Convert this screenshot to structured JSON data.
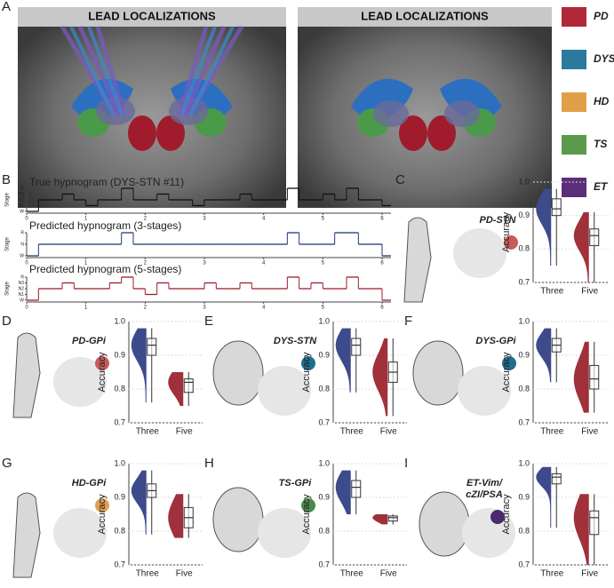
{
  "panel_labels": [
    "A",
    "B",
    "C",
    "D",
    "E",
    "F",
    "G",
    "H",
    "I"
  ],
  "figure_a": {
    "titles": [
      "LEAD LOCALIZATIONS",
      "LEAD LOCALIZATIONS"
    ],
    "legend": [
      {
        "name": "PD",
        "color": "#b0283a"
      },
      {
        "name": "DYS",
        "color": "#2b7a9e"
      },
      {
        "name": "HD",
        "color": "#e0a04a"
      },
      {
        "name": "TS",
        "color": "#5a9a4a"
      },
      {
        "name": "ET",
        "color": "#5a2e78"
      }
    ]
  },
  "chart_data": [
    {
      "type": "hypnogram",
      "title": "True hypnogram (DYS-STN #11)",
      "ylabel": "Stage",
      "color": "#111111",
      "x": [
        0,
        0.2,
        0.4,
        0.6,
        0.8,
        1,
        1.2,
        1.4,
        1.6,
        1.8,
        2,
        2.2,
        2.4,
        2.6,
        2.8,
        3,
        3.2,
        3.4,
        3.6,
        3.8,
        4,
        4.2,
        4.4,
        4.6,
        4.8,
        5,
        5.2,
        5.4,
        5.6,
        5.8,
        6
      ],
      "values": [
        0,
        2,
        2,
        3,
        2,
        1,
        2,
        2,
        4,
        2,
        2,
        3,
        2,
        2,
        1,
        2,
        2,
        2,
        3,
        2,
        2,
        2,
        4,
        2,
        2,
        3,
        2,
        4,
        2,
        2,
        1
      ],
      "xlim": [
        0,
        6.15
      ],
      "xticks": [
        0,
        1,
        2,
        3,
        4,
        5,
        6
      ],
      "ylim": [
        0,
        4
      ],
      "yticks": [
        {
          "value": 0,
          "label": "W"
        },
        {
          "value": 1,
          "label": "N1"
        },
        {
          "value": 2,
          "label": "N2"
        },
        {
          "value": 3,
          "label": "N3"
        },
        {
          "value": 4,
          "label": "R"
        }
      ]
    },
    {
      "type": "hypnogram",
      "title": "Predicted hypnogram (3-stages)",
      "ylabel": "Stage",
      "color": "#1f3a7a",
      "x": [
        0,
        0.2,
        0.4,
        0.6,
        0.8,
        1,
        1.2,
        1.4,
        1.6,
        1.8,
        2,
        2.2,
        2.4,
        2.6,
        2.8,
        3,
        3.2,
        3.4,
        3.6,
        3.8,
        4,
        4.2,
        4.4,
        4.6,
        4.8,
        5,
        5.2,
        5.4,
        5.6,
        5.8,
        6
      ],
      "values": [
        0,
        1,
        1,
        1,
        1,
        1,
        1,
        1,
        2,
        1,
        1,
        1,
        1,
        1,
        1,
        1,
        1,
        1,
        1,
        1,
        1,
        1,
        2,
        1,
        1,
        1,
        2,
        2,
        1,
        1,
        0
      ],
      "xlim": [
        0,
        6.15
      ],
      "xticks": [
        0,
        1,
        2,
        3,
        4,
        5,
        6
      ],
      "ylim": [
        0,
        2
      ],
      "yticks": [
        {
          "value": 0,
          "label": "W"
        },
        {
          "value": 1,
          "label": "N"
        },
        {
          "value": 2,
          "label": "R"
        }
      ]
    },
    {
      "type": "hypnogram",
      "title": "Predicted hypnogram (5-stages)",
      "ylabel": "Stage",
      "color": "#a01c2c",
      "x": [
        0,
        0.2,
        0.4,
        0.6,
        0.8,
        1,
        1.2,
        1.4,
        1.6,
        1.8,
        2,
        2.2,
        2.4,
        2.6,
        2.8,
        3,
        3.2,
        3.4,
        3.6,
        3.8,
        4,
        4.2,
        4.4,
        4.6,
        4.8,
        5,
        5.2,
        5.4,
        5.6,
        5.8,
        6
      ],
      "values": [
        0,
        2,
        2,
        3,
        2,
        2,
        2,
        3,
        4,
        2,
        1,
        3,
        2,
        2,
        2,
        3,
        2,
        2,
        3,
        2,
        2,
        2,
        4,
        2,
        3,
        2,
        2,
        4,
        2,
        2,
        0
      ],
      "xlim": [
        0,
        6.15
      ],
      "xticks": [
        0,
        1,
        2,
        3,
        4,
        5,
        6
      ],
      "ylim": [
        0,
        4
      ],
      "yticks": [
        {
          "value": 0,
          "label": "W"
        },
        {
          "value": 1,
          "label": "N1"
        },
        {
          "value": 2,
          "label": "N2"
        },
        {
          "value": 3,
          "label": "N3"
        },
        {
          "value": 4,
          "label": "R"
        }
      ]
    },
    {
      "type": "box",
      "title_lines": [
        "PD-STN"
      ],
      "marker_color": "#c85a5a",
      "ylabel": "Accuracy",
      "grid": true,
      "ylim": [
        0.7,
        1
      ],
      "yticks": [
        0.7,
        0.8,
        0.9,
        {
          "value": 1,
          "label": "1.0"
        }
      ],
      "series": [
        {
          "name": "Three",
          "color": "#3d4a8c",
          "min": 0.75,
          "q1": 0.9,
          "median": 0.92,
          "q3": 0.95,
          "max": 0.98
        },
        {
          "name": "Five",
          "color": "#a0303a",
          "min": 0.7,
          "q1": 0.81,
          "median": 0.84,
          "q3": 0.86,
          "max": 0.91
        }
      ]
    },
    {
      "type": "box",
      "title_lines": [
        "PD-GPi"
      ],
      "marker_color": "#c85a5a",
      "ylabel": "Accuracy",
      "grid": true,
      "ylim": [
        0.7,
        1
      ],
      "yticks": [
        0.7,
        0.8,
        0.9,
        {
          "value": 1,
          "label": "1.0"
        }
      ],
      "series": [
        {
          "name": "Three",
          "color": "#3d4a8c",
          "min": 0.76,
          "q1": 0.9,
          "median": 0.93,
          "q3": 0.95,
          "max": 0.98
        },
        {
          "name": "Five",
          "color": "#a0303a",
          "min": 0.75,
          "q1": 0.79,
          "median": 0.82,
          "q3": 0.83,
          "max": 0.85
        }
      ]
    },
    {
      "type": "box",
      "title_lines": [
        "DYS-STN"
      ],
      "marker_color": "#1f6e8c",
      "ylabel": "Accuracy",
      "grid": true,
      "ylim": [
        0.7,
        1
      ],
      "yticks": [
        0.7,
        0.8,
        0.9,
        {
          "value": 1,
          "label": "1.0"
        }
      ],
      "series": [
        {
          "name": "Three",
          "color": "#3d4a8c",
          "min": 0.79,
          "q1": 0.9,
          "median": 0.93,
          "q3": 0.95,
          "max": 0.98
        },
        {
          "name": "Five",
          "color": "#a0303a",
          "min": 0.72,
          "q1": 0.82,
          "median": 0.85,
          "q3": 0.88,
          "max": 0.95
        }
      ]
    },
    {
      "type": "box",
      "title_lines": [
        "DYS-GPi"
      ],
      "marker_color": "#1f6e8c",
      "ylabel": "Accuracy",
      "grid": true,
      "ylim": [
        0.7,
        1
      ],
      "yticks": [
        0.7,
        0.8,
        0.9,
        {
          "value": 1,
          "label": "1.0"
        }
      ],
      "series": [
        {
          "name": "Three",
          "color": "#3d4a8c",
          "min": 0.82,
          "q1": 0.91,
          "median": 0.93,
          "q3": 0.95,
          "max": 0.98
        },
        {
          "name": "Five",
          "color": "#a0303a",
          "min": 0.73,
          "q1": 0.8,
          "median": 0.83,
          "q3": 0.87,
          "max": 0.94
        }
      ]
    },
    {
      "type": "box",
      "title_lines": [
        "HD-GPi"
      ],
      "marker_color": "#e0a050",
      "ylabel": "Accuracy",
      "grid": true,
      "ylim": [
        0.7,
        1
      ],
      "yticks": [
        0.7,
        0.8,
        0.9,
        {
          "value": 1,
          "label": "1.0"
        }
      ],
      "series": [
        {
          "name": "Three",
          "color": "#3d4a8c",
          "min": 0.79,
          "q1": 0.9,
          "median": 0.92,
          "q3": 0.94,
          "max": 0.98
        },
        {
          "name": "Five",
          "color": "#a0303a",
          "min": 0.78,
          "q1": 0.81,
          "median": 0.84,
          "q3": 0.87,
          "max": 0.91
        }
      ]
    },
    {
      "type": "box",
      "title_lines": [
        "TS-GPi"
      ],
      "marker_color": "#4a8a4a",
      "ylabel": "Accuracy",
      "grid": true,
      "ylim": [
        0.7,
        1
      ],
      "yticks": [
        0.7,
        0.8,
        0.9,
        {
          "value": 1,
          "label": "1.0"
        }
      ],
      "series": [
        {
          "name": "Three",
          "color": "#3d4a8c",
          "min": 0.85,
          "q1": 0.9,
          "median": 0.93,
          "q3": 0.95,
          "max": 0.98
        },
        {
          "name": "Five",
          "color": "#a0303a",
          "min": 0.82,
          "q1": 0.83,
          "median": 0.84,
          "q3": 0.845,
          "max": 0.85
        }
      ]
    },
    {
      "type": "box",
      "title_lines": [
        "ET-Vim/",
        "cZI/PSA"
      ],
      "marker_color": "#4a2a6a",
      "ylabel": "Accuracy",
      "grid": true,
      "ylim": [
        0.7,
        1
      ],
      "yticks": [
        0.7,
        0.8,
        0.9,
        {
          "value": 1,
          "label": "1.0"
        }
      ],
      "series": [
        {
          "name": "Three",
          "color": "#3d4a8c",
          "min": 0.81,
          "q1": 0.94,
          "median": 0.96,
          "q3": 0.97,
          "max": 0.99
        },
        {
          "name": "Five",
          "color": "#a0303a",
          "min": 0.7,
          "q1": 0.79,
          "median": 0.84,
          "q3": 0.86,
          "max": 0.91
        }
      ]
    }
  ]
}
